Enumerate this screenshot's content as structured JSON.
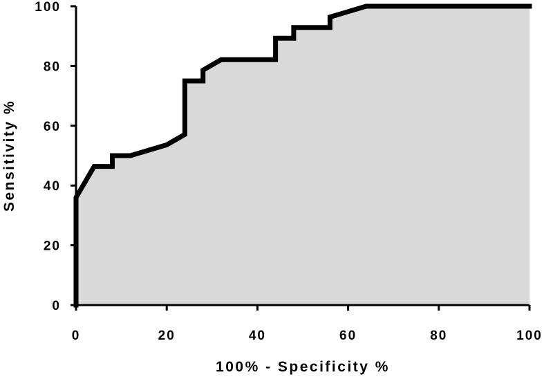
{
  "chart_data": {
    "type": "area",
    "title": "",
    "xlabel": "100% - Specificity %",
    "ylabel": "Sensitivity %",
    "xlim": [
      0,
      100
    ],
    "ylim": [
      0,
      100
    ],
    "xticks": [
      "0",
      "20",
      "40",
      "60",
      "80",
      "100"
    ],
    "yticks": [
      "0",
      "20",
      "40",
      "60",
      "80",
      "100"
    ],
    "grid": false,
    "colors": {
      "fill": "#d9d9d9",
      "line": "#000000",
      "axis": "#000000"
    },
    "series": [
      {
        "x": [
          0,
          0,
          4,
          8,
          8,
          12,
          20,
          24,
          24,
          28,
          28,
          32,
          36,
          44,
          44,
          48,
          48,
          56,
          56,
          60,
          64,
          100
        ],
        "y": [
          0,
          36,
          46.4,
          46.4,
          50,
          50,
          53.6,
          57.1,
          75,
          75,
          78.6,
          82.1,
          82.1,
          82.1,
          89.3,
          89.3,
          92.9,
          92.9,
          96.4,
          98.2,
          100,
          100
        ]
      }
    ]
  }
}
